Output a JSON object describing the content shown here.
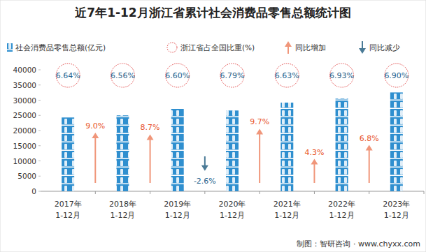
{
  "chart_data": {
    "type": "bar",
    "title": "近7年1-12月浙江省累计社会消费品零售总额统计图",
    "categories": [
      "2017年1-12月",
      "2018年1-12月",
      "2019年1-12月",
      "2020年1-12月",
      "2021年1-12月",
      "2022年1-12月",
      "2023年1-12月"
    ],
    "series": [
      {
        "name": "社会消费品零售总额(亿元)",
        "color": "#2f8fcf",
        "values": [
          24300,
          25000,
          27200,
          26600,
          29200,
          30500,
          32550
        ]
      }
    ],
    "share": {
      "name": "浙江省占全国比重(%)",
      "values": [
        6.64,
        6.56,
        6.6,
        6.79,
        6.63,
        6.93,
        6.9
      ],
      "value_labels": [
        "6.64%",
        "6.56%",
        "6.60%",
        "6.79%",
        "6.63%",
        "6.93%",
        "6.90%"
      ]
    },
    "growth": {
      "up_name": "同比增加",
      "down_name": "同比减少",
      "values": [
        9.0,
        8.7,
        -2.6,
        9.7,
        4.3,
        6.8
      ],
      "value_labels": [
        "9.0%",
        "8.7%",
        "-2.6%",
        "9.7%",
        "4.3%",
        "6.8%"
      ]
    },
    "ylim": [
      0,
      40000
    ],
    "yticks": [
      0,
      5000,
      10000,
      15000,
      20000,
      25000,
      30000,
      35000,
      40000
    ],
    "grid": false,
    "source": "制图：智研咨询 · www.chyxx.com"
  }
}
